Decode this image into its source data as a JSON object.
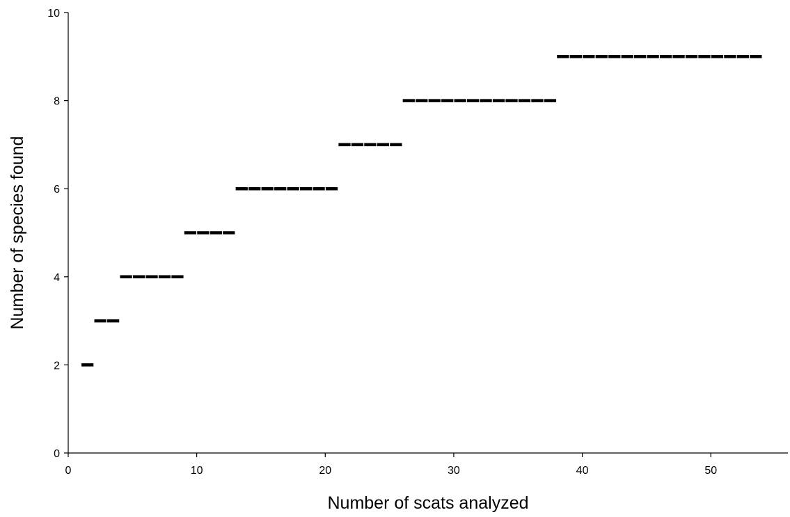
{
  "chart_data": {
    "type": "line",
    "xlabel": "Number of scats analyzed",
    "ylabel": "Number of species found",
    "xlim": [
      0,
      56
    ],
    "ylim": [
      0,
      10
    ],
    "xticks": [
      0,
      10,
      20,
      30,
      40,
      50
    ],
    "yticks": [
      0,
      2,
      4,
      6,
      8,
      10
    ],
    "grid": false,
    "legend": "none",
    "series": [
      {
        "x": [
          1,
          2,
          3,
          4,
          5,
          6,
          7,
          8,
          9,
          10,
          11,
          12,
          13,
          14,
          15,
          16,
          17,
          18,
          19,
          20,
          21,
          22,
          23,
          24,
          25,
          26,
          27,
          28,
          29,
          30,
          31,
          32,
          33,
          34,
          35,
          36,
          37,
          38,
          39,
          40,
          41,
          42,
          43,
          44,
          45,
          46,
          47,
          48,
          49,
          50,
          51,
          52,
          53
        ],
        "y": [
          2,
          3,
          3,
          4,
          4,
          4,
          4,
          4,
          5,
          5,
          5,
          5,
          6,
          6,
          6,
          6,
          6,
          6,
          6,
          6,
          7,
          7,
          7,
          7,
          7,
          8,
          8,
          8,
          8,
          8,
          8,
          8,
          8,
          8,
          8,
          8,
          8,
          9,
          9,
          9,
          9,
          9,
          9,
          9,
          9,
          9,
          9,
          9,
          9,
          9,
          9,
          9,
          9
        ]
      }
    ]
  }
}
